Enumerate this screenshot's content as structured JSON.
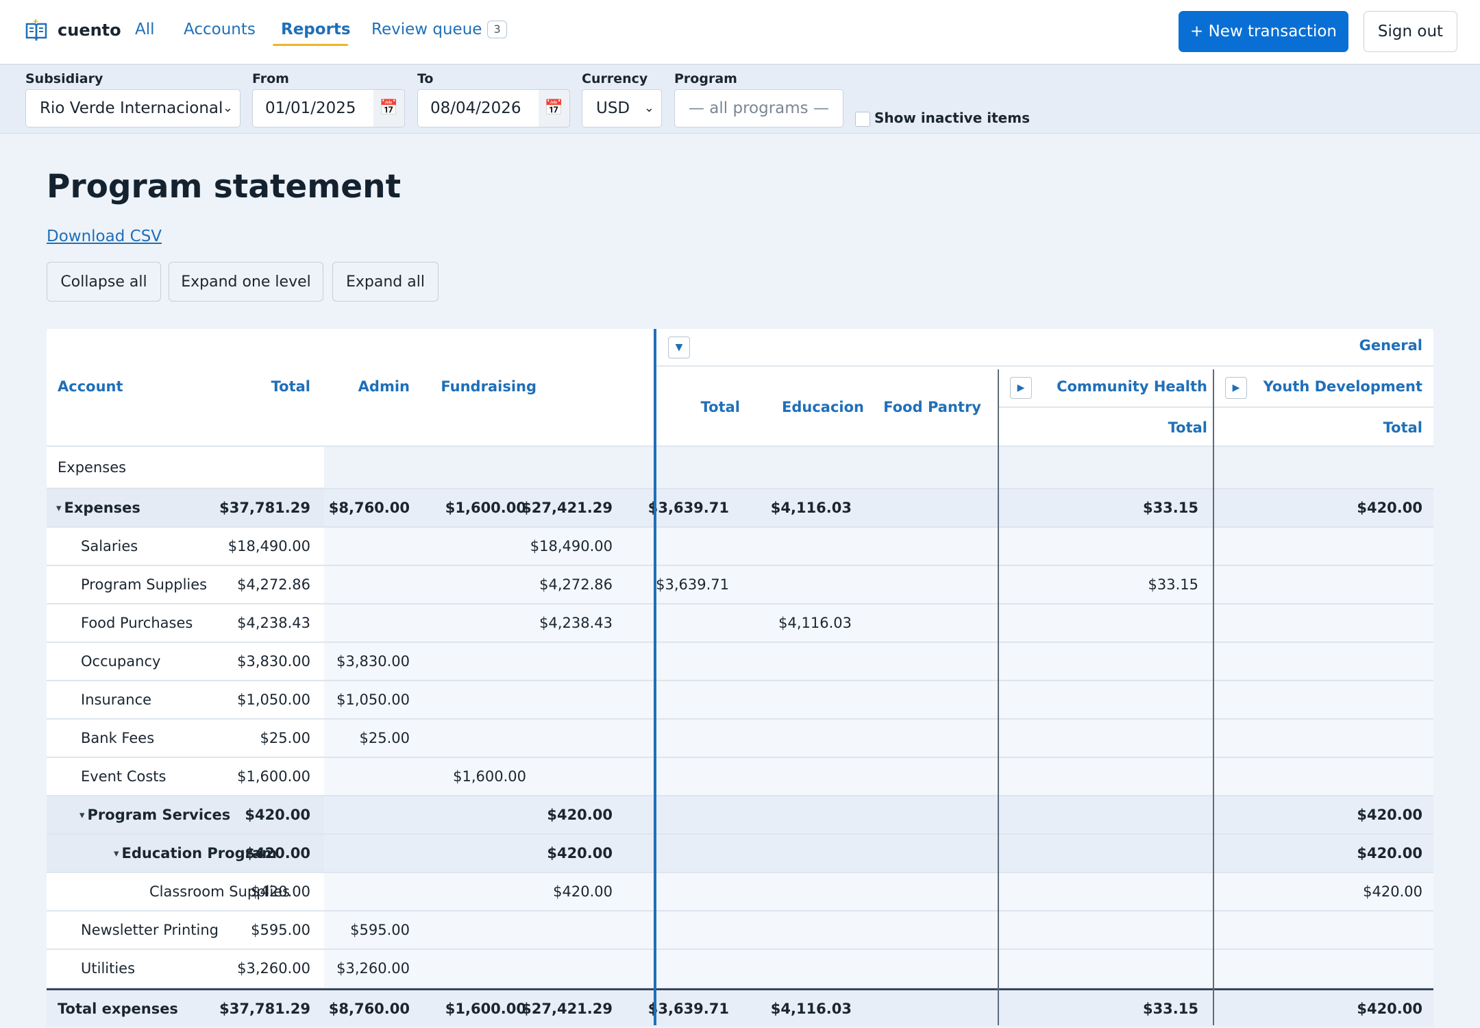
{
  "app": {
    "name": "cuento"
  },
  "nav": {
    "links": [
      {
        "label": "All"
      },
      {
        "label": "Accounts"
      },
      {
        "label": "Reports"
      },
      {
        "label": "Review queue",
        "badge": "3"
      }
    ],
    "new_transaction": "+ New transaction",
    "sign_out": "Sign out"
  },
  "filters": {
    "subsidiary_label": "Subsidiary",
    "subsidiary_value": "Rio Verde Internacional",
    "from_label": "From",
    "from_value": "01/01/2025",
    "to_label": "To",
    "to_value": "08/04/2026",
    "currency_label": "Currency",
    "currency_value": "USD",
    "program_label": "Program",
    "program_placeholder": "— all programs —",
    "show_inactive": "Show inactive items"
  },
  "page": {
    "title": "Program statement",
    "download_csv": "Download CSV",
    "buttons": [
      "Collapse all",
      "Expand one level",
      "Expand all"
    ]
  },
  "table": {
    "headers": {
      "account": "Account",
      "total": "Total",
      "admin": "Admin",
      "fundraising": "Fundraising",
      "general": "General",
      "general_total": "Total",
      "educacion": "Educacion",
      "food_pantry": "Food Pantry",
      "community_health": "Community Health",
      "community_health_total": "Total",
      "youth_development": "Youth Development",
      "youth_development_total": "Total"
    },
    "section_label": "Expenses",
    "rows": [
      {
        "label": "Expenses",
        "level": 0,
        "kind": "group",
        "expanded": true,
        "total": "$37,781.29",
        "admin": "$8,760.00",
        "fundraising": "$1,600.00",
        "gen_total": "$27,421.29",
        "educacion": "$3,639.71",
        "food_pantry": "$4,116.03",
        "community_health": "$33.15",
        "youth_development": "$420.00"
      },
      {
        "label": "Salaries",
        "level": 1,
        "kind": "plain",
        "total": "$18,490.00",
        "admin": "",
        "fundraising": "",
        "gen_total": "$18,490.00",
        "educacion": "",
        "food_pantry": "",
        "community_health": "",
        "youth_development": ""
      },
      {
        "label": "Program Supplies",
        "level": 1,
        "kind": "plain",
        "total": "$4,272.86",
        "admin": "",
        "fundraising": "",
        "gen_total": "$4,272.86",
        "educacion": "$3,639.71",
        "food_pantry": "",
        "community_health": "$33.15",
        "youth_development": ""
      },
      {
        "label": "Food Purchases",
        "level": 1,
        "kind": "plain",
        "total": "$4,238.43",
        "admin": "",
        "fundraising": "",
        "gen_total": "$4,238.43",
        "educacion": "",
        "food_pantry": "$4,116.03",
        "community_health": "",
        "youth_development": ""
      },
      {
        "label": "Occupancy",
        "level": 1,
        "kind": "plain",
        "total": "$3,830.00",
        "admin": "$3,830.00",
        "fundraising": "",
        "gen_total": "",
        "educacion": "",
        "food_pantry": "",
        "community_health": "",
        "youth_development": ""
      },
      {
        "label": "Insurance",
        "level": 1,
        "kind": "plain",
        "total": "$1,050.00",
        "admin": "$1,050.00",
        "fundraising": "",
        "gen_total": "",
        "educacion": "",
        "food_pantry": "",
        "community_health": "",
        "youth_development": ""
      },
      {
        "label": "Bank Fees",
        "level": 1,
        "kind": "plain",
        "total": "$25.00",
        "admin": "$25.00",
        "fundraising": "",
        "gen_total": "",
        "educacion": "",
        "food_pantry": "",
        "community_health": "",
        "youth_development": ""
      },
      {
        "label": "Event Costs",
        "level": 1,
        "kind": "plain",
        "total": "$1,600.00",
        "admin": "",
        "fundraising": "$1,600.00",
        "gen_total": "",
        "educacion": "",
        "food_pantry": "",
        "community_health": "",
        "youth_development": ""
      },
      {
        "label": "Program Services",
        "level": 1,
        "kind": "group",
        "expanded": true,
        "total": "$420.00",
        "admin": "",
        "fundraising": "",
        "gen_total": "$420.00",
        "educacion": "",
        "food_pantry": "",
        "community_health": "",
        "youth_development": "$420.00"
      },
      {
        "label": "Education Program",
        "level": 2,
        "kind": "group",
        "expanded": true,
        "total": "$420.00",
        "admin": "",
        "fundraising": "",
        "gen_total": "$420.00",
        "educacion": "",
        "food_pantry": "",
        "community_health": "",
        "youth_development": "$420.00"
      },
      {
        "label": "Classroom Supplies",
        "level": 3,
        "kind": "plain",
        "total": "$420.00",
        "admin": "",
        "fundraising": "",
        "gen_total": "$420.00",
        "educacion": "",
        "food_pantry": "",
        "community_health": "",
        "youth_development": "$420.00"
      },
      {
        "label": "Newsletter Printing",
        "level": 1,
        "kind": "plain",
        "total": "$595.00",
        "admin": "$595.00",
        "fundraising": "",
        "gen_total": "",
        "educacion": "",
        "food_pantry": "",
        "community_health": "",
        "youth_development": ""
      },
      {
        "label": "Utilities",
        "level": 1,
        "kind": "plain",
        "total": "$3,260.00",
        "admin": "$3,260.00",
        "fundraising": "",
        "gen_total": "",
        "educacion": "",
        "food_pantry": "",
        "community_health": "",
        "youth_development": ""
      }
    ],
    "total_row": {
      "label": "Total expenses",
      "total": "$37,781.29",
      "admin": "$8,760.00",
      "fundraising": "$1,600.00",
      "gen_total": "$27,421.29",
      "educacion": "$3,639.71",
      "food_pantry": "$4,116.03",
      "community_health": "$33.15",
      "youth_development": "$420.00"
    }
  },
  "colors": {
    "accent": "#0a6fd4",
    "link": "#1f6fb8",
    "nav_underline": "#f0b429"
  }
}
